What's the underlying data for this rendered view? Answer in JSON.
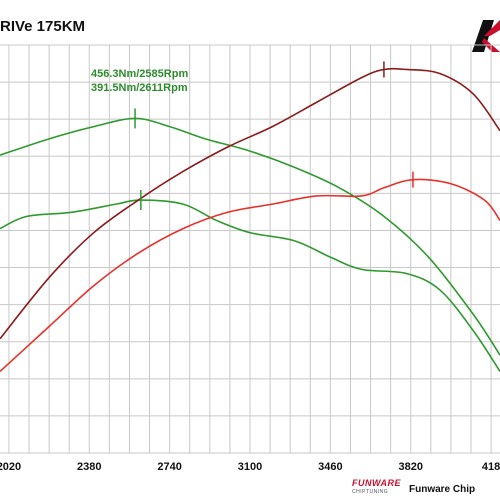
{
  "header": {
    "title": "RIVe 175KM"
  },
  "footer": {
    "brand": "FUNWARE",
    "brand_sub": "CHIPTUNING",
    "text": "Funware Chip"
  },
  "chart_data": {
    "type": "line",
    "x_ticks": [
      "2020",
      "2380",
      "2740",
      "3100",
      "3460",
      "3820",
      "418"
    ],
    "xlim": [
      1980,
      4220
    ],
    "ylim": [
      0,
      100
    ],
    "grid": true,
    "legend": "none",
    "annotations": [
      {
        "text": "456.3Nm/2585Rpm",
        "series": "torque_tuned",
        "x": 2585
      },
      {
        "text": "391.5Nm/2611Rpm",
        "series": "torque_stock",
        "x": 2611
      }
    ],
    "series": [
      {
        "key": "torque_tuned",
        "color": "#2e9a2e",
        "x": [
          1980,
          2200,
          2400,
          2585,
          2740,
          2900,
          3100,
          3300,
          3500,
          3700,
          3900,
          4100,
          4220
        ],
        "y": [
          73,
          77,
          80,
          82,
          80,
          77,
          74,
          70,
          65,
          58,
          48,
          34,
          24
        ]
      },
      {
        "key": "torque_stock",
        "color": "#2e9a2e",
        "x": [
          1980,
          2100,
          2300,
          2500,
          2611,
          2800,
          2950,
          3100,
          3300,
          3460,
          3600,
          3800,
          3950,
          4100,
          4220
        ],
        "y": [
          55,
          58,
          59,
          61,
          62,
          61,
          57,
          54,
          52,
          48,
          45,
          44,
          40,
          30,
          20
        ]
      },
      {
        "key": "power_tuned",
        "color": "#8b1a1a",
        "x": [
          1980,
          2200,
          2400,
          2600,
          2800,
          3000,
          3200,
          3400,
          3600,
          3700,
          3800,
          3950,
          4100,
          4220
        ],
        "y": [
          28,
          43,
          54,
          62,
          69,
          75,
          80,
          86,
          92,
          94,
          94,
          93,
          88,
          79
        ]
      },
      {
        "key": "power_stock",
        "color": "#e8302a",
        "x": [
          1980,
          2200,
          2400,
          2600,
          2800,
          3000,
          3200,
          3400,
          3600,
          3700,
          3830,
          4000,
          4150,
          4220
        ],
        "y": [
          20,
          31,
          41,
          49,
          55,
          59,
          61,
          63,
          63,
          65,
          67,
          66,
          62,
          57
        ]
      }
    ]
  }
}
